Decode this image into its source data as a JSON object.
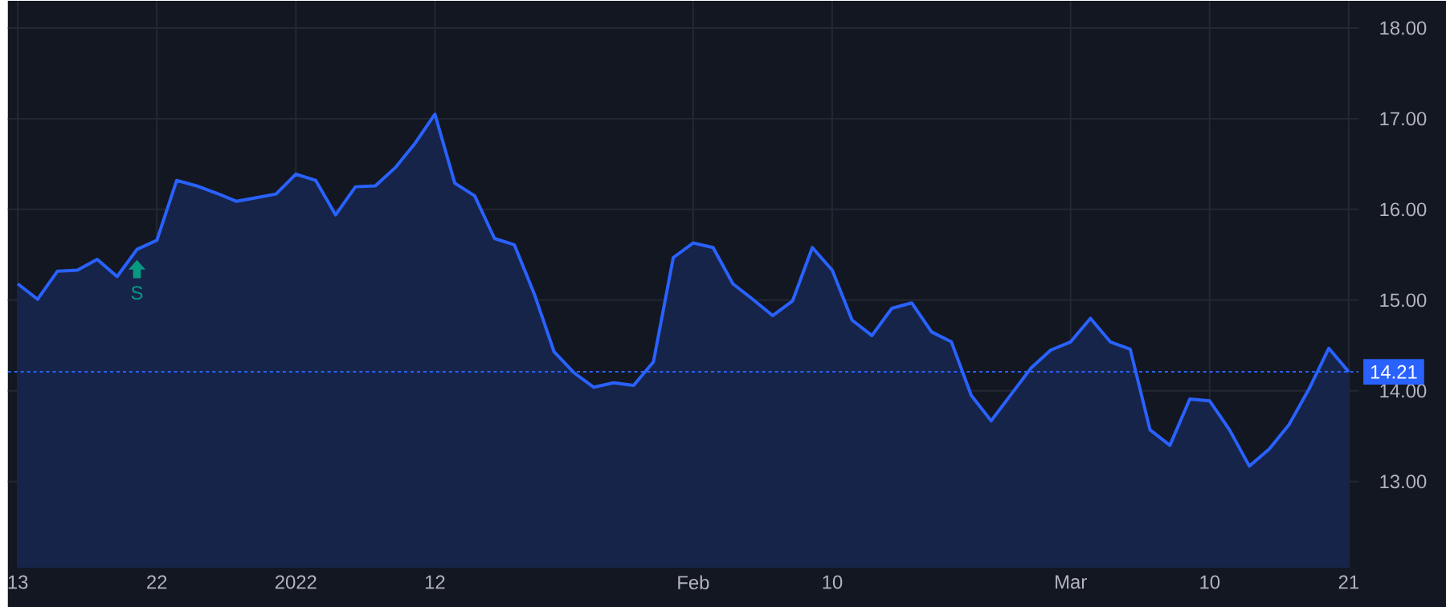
{
  "chart_data": {
    "type": "area",
    "categories": [
      "13",
      null,
      null,
      null,
      null,
      null,
      null,
      "22",
      null,
      null,
      null,
      null,
      null,
      null,
      "2022",
      null,
      null,
      null,
      null,
      null,
      null,
      "12",
      null,
      null,
      null,
      null,
      null,
      null,
      null,
      null,
      null,
      null,
      null,
      null,
      "Feb",
      null,
      null,
      null,
      null,
      null,
      null,
      "10",
      null,
      null,
      null,
      null,
      null,
      null,
      null,
      null,
      null,
      null,
      null,
      "Mar",
      null,
      null,
      null,
      null,
      null,
      null,
      "10",
      null,
      null,
      null,
      null,
      null,
      null,
      "21"
    ],
    "series": [
      {
        "color": "#2962ff",
        "values": [
          15.18,
          15.01,
          15.32,
          15.33,
          15.45,
          15.26,
          15.56,
          15.66,
          16.32,
          16.26,
          16.18,
          16.09,
          16.13,
          16.17,
          16.39,
          16.32,
          15.94,
          16.25,
          16.26,
          16.46,
          16.73,
          17.05,
          16.29,
          16.15,
          15.68,
          15.61,
          15.07,
          14.43,
          14.2,
          14.04,
          14.09,
          14.06,
          14.32,
          15.47,
          15.63,
          15.58,
          15.18,
          15.01,
          14.83,
          14.99,
          15.58,
          15.33,
          14.78,
          14.61,
          14.91,
          14.97,
          14.65,
          14.54,
          13.95,
          13.67,
          13.96,
          14.25,
          14.45,
          14.54,
          14.8,
          14.54,
          14.46,
          13.57,
          13.4,
          13.91,
          13.89,
          13.57,
          13.17,
          13.36,
          13.63,
          14.02,
          14.47,
          14.21
        ]
      }
    ],
    "ylim": [
      12.05,
      18.3
    ],
    "yticks": [
      {
        "value": 13,
        "label": "13.00"
      },
      {
        "value": 14,
        "label": "14.00"
      },
      {
        "value": 15,
        "label": "15.00"
      },
      {
        "value": 16,
        "label": "16.00"
      },
      {
        "value": 17,
        "label": "17.00"
      },
      {
        "value": 18,
        "label": "18.00"
      }
    ],
    "grid": true,
    "line_style": "solid",
    "ref_lines": [
      {
        "axis": "y",
        "value": 14.21,
        "label": "14.21",
        "color": "#2962ff",
        "line_style": "dotted"
      }
    ],
    "annotations": [
      {
        "text": "S",
        "y": 15.56
      }
    ]
  }
}
